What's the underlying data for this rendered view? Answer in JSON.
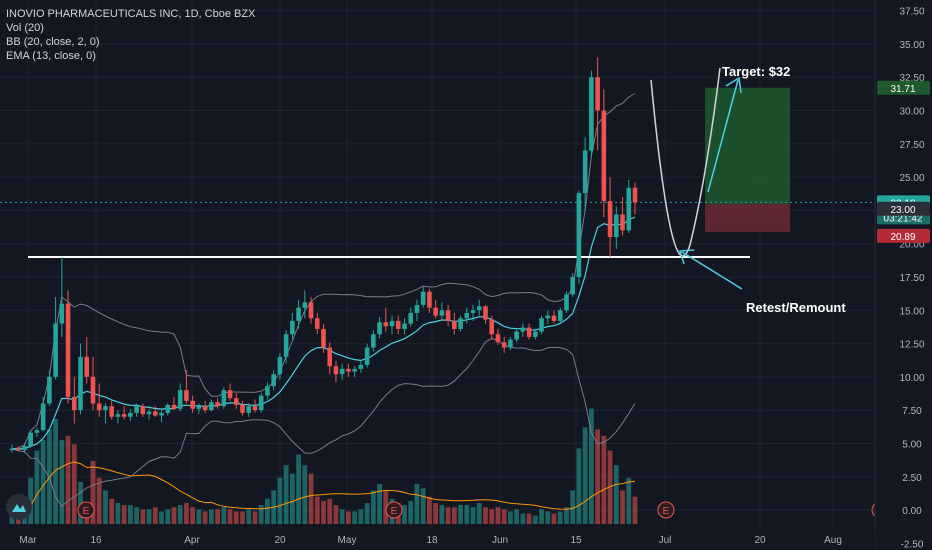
{
  "legend": {
    "title": "INOVIO PHARMACEUTICALS INC, 1D, Cboe BZX",
    "vol": "Vol (20)",
    "bb": "BB (20, close, 2, 0)",
    "ema": "EMA (13, close, 0)"
  },
  "annotations": {
    "target": "Target: $32",
    "retest": "Retest/Remount"
  },
  "price_badges": {
    "target": "31.71",
    "last": "23.10",
    "countdown": "03:21:42",
    "entry": "23.00",
    "stop": "20.89"
  },
  "earnings_marker": "E",
  "colors": {
    "background": "#131722",
    "up": "#26a69a",
    "down": "#ef5350",
    "bb": "#787b86",
    "ema": "#4dd0e1",
    "vol_ma": "#ff9800",
    "target_zone": "#1e5a2e",
    "stop_zone": "#6b2a35",
    "annotation": "#4dd0e1"
  },
  "chart_data": {
    "type": "candlestick",
    "title": "INOVIO PHARMACEUTICALS INC, 1D, Cboe BZX",
    "ylim": [
      -3.0,
      38.3
    ],
    "y_ticks": [
      "37.50",
      "35.00",
      "32.50",
      "30.00",
      "27.50",
      "25.00",
      "22.50",
      "20.00",
      "17.50",
      "15.00",
      "12.50",
      "10.00",
      "7.50",
      "5.00",
      "2.50",
      "0.00",
      "-2.50"
    ],
    "x_ticks": [
      "Mar",
      "16",
      "Apr",
      "20",
      "May",
      "18",
      "Jun",
      "15",
      "Jul",
      "20",
      "Aug"
    ],
    "resistance_level": 19.0,
    "target_price": 31.71,
    "entry_price": 23.0,
    "stop_price": 20.89,
    "last_price": 23.1,
    "candles": [
      [
        4.5,
        4.9,
        4.3,
        4.6,
        0.45
      ],
      [
        4.6,
        4.8,
        4.4,
        4.5,
        0.35
      ],
      [
        4.5,
        5.0,
        4.3,
        4.8,
        0.5
      ],
      [
        4.8,
        6.0,
        4.7,
        5.8,
        2.2
      ],
      [
        5.8,
        6.2,
        5.5,
        6.0,
        3.5
      ],
      [
        6.0,
        8.5,
        5.9,
        8.0,
        4.0
      ],
      [
        8.0,
        10.5,
        7.8,
        10.0,
        4.5
      ],
      [
        10.0,
        16.0,
        9.8,
        14.0,
        5.0
      ],
      [
        14.0,
        19.0,
        13.0,
        15.5,
        4.0
      ],
      [
        15.5,
        16.5,
        8.0,
        8.5,
        4.2
      ],
      [
        8.5,
        10.0,
        6.5,
        7.5,
        3.8
      ],
      [
        7.5,
        12.5,
        7.2,
        11.5,
        2.0
      ],
      [
        11.5,
        13.0,
        9.5,
        10.0,
        0.5
      ],
      [
        10.0,
        11.5,
        7.5,
        8.0,
        3.0
      ],
      [
        8.0,
        9.5,
        7.0,
        7.5,
        2.2
      ],
      [
        7.5,
        8.0,
        6.5,
        7.8,
        1.6
      ],
      [
        7.8,
        8.2,
        6.8,
        7.0,
        1.2
      ],
      [
        7.0,
        7.5,
        6.5,
        7.2,
        1.0
      ],
      [
        7.2,
        7.8,
        6.8,
        7.0,
        0.9
      ],
      [
        7.0,
        7.6,
        6.7,
        7.3,
        0.9
      ],
      [
        7.3,
        8.0,
        7.0,
        7.8,
        0.8
      ],
      [
        7.8,
        8.0,
        7.0,
        7.2,
        0.7
      ],
      [
        7.2,
        7.6,
        6.8,
        7.4,
        0.7
      ],
      [
        7.4,
        7.8,
        7.0,
        7.1,
        0.8
      ],
      [
        7.1,
        7.5,
        6.6,
        7.3,
        0.6
      ],
      [
        7.3,
        8.0,
        7.1,
        7.9,
        0.7
      ],
      [
        7.9,
        8.5,
        7.5,
        7.6,
        0.8
      ],
      [
        7.6,
        9.5,
        7.4,
        9.0,
        0.9
      ],
      [
        9.0,
        10.5,
        8.0,
        8.2,
        1.0
      ],
      [
        8.2,
        8.6,
        7.3,
        7.6,
        0.8
      ],
      [
        7.6,
        8.0,
        7.2,
        7.8,
        0.7
      ],
      [
        7.8,
        8.2,
        7.3,
        7.5,
        0.6
      ],
      [
        7.5,
        8.3,
        7.4,
        8.1,
        0.7
      ],
      [
        8.1,
        8.4,
        7.6,
        7.8,
        0.7
      ],
      [
        7.8,
        9.2,
        7.6,
        9.0,
        0.8
      ],
      [
        9.0,
        9.5,
        8.2,
        8.4,
        0.7
      ],
      [
        8.4,
        8.8,
        7.6,
        7.9,
        0.6
      ],
      [
        7.9,
        8.2,
        7.1,
        7.3,
        0.6
      ],
      [
        7.3,
        8.0,
        7.0,
        7.8,
        0.7
      ],
      [
        7.8,
        8.3,
        7.3,
        7.5,
        0.6
      ],
      [
        7.5,
        8.8,
        7.3,
        8.6,
        0.9
      ],
      [
        8.6,
        9.6,
        8.3,
        9.3,
        1.2
      ],
      [
        9.3,
        10.5,
        9.0,
        10.2,
        1.6
      ],
      [
        10.2,
        11.8,
        9.8,
        11.5,
        2.2
      ],
      [
        11.5,
        13.5,
        11.0,
        13.2,
        2.8
      ],
      [
        13.2,
        14.8,
        12.8,
        14.2,
        2.4
      ],
      [
        14.2,
        15.8,
        13.6,
        15.2,
        3.3
      ],
      [
        15.2,
        16.5,
        14.4,
        15.6,
        2.8
      ],
      [
        15.6,
        16.0,
        14.0,
        14.4,
        2.4
      ],
      [
        14.4,
        14.8,
        13.2,
        13.6,
        1.3
      ],
      [
        13.6,
        14.0,
        11.8,
        12.2,
        1.1
      ],
      [
        12.2,
        12.6,
        10.2,
        10.8,
        1.2
      ],
      [
        10.8,
        11.2,
        9.6,
        10.2,
        0.9
      ],
      [
        10.2,
        11.0,
        9.8,
        10.6,
        0.7
      ],
      [
        10.6,
        11.0,
        10.0,
        10.4,
        0.6
      ],
      [
        10.4,
        10.8,
        10.0,
        10.6,
        0.6
      ],
      [
        10.6,
        11.2,
        10.3,
        10.9,
        0.7
      ],
      [
        10.9,
        12.5,
        10.7,
        12.2,
        1.0
      ],
      [
        12.2,
        13.5,
        11.9,
        13.2,
        1.6
      ],
      [
        13.2,
        14.5,
        12.9,
        14.1,
        1.9
      ],
      [
        14.1,
        15.2,
        13.4,
        13.8,
        1.6
      ],
      [
        13.8,
        14.6,
        13.2,
        14.2,
        1.2
      ],
      [
        14.2,
        14.6,
        13.2,
        13.6,
        1.0
      ],
      [
        13.6,
        14.4,
        13.2,
        14.0,
        0.9
      ],
      [
        14.0,
        15.2,
        13.8,
        14.8,
        1.1
      ],
      [
        14.8,
        15.8,
        14.2,
        15.4,
        1.9
      ],
      [
        15.4,
        16.8,
        15.2,
        16.4,
        1.7
      ],
      [
        16.4,
        16.6,
        14.8,
        15.2,
        1.3
      ],
      [
        15.2,
        15.8,
        14.4,
        14.6,
        1.0
      ],
      [
        14.6,
        15.6,
        14.2,
        15.0,
        0.9
      ],
      [
        15.0,
        15.4,
        13.8,
        14.2,
        0.8
      ],
      [
        14.2,
        14.8,
        13.2,
        13.6,
        0.8
      ],
      [
        13.6,
        14.6,
        13.4,
        14.4,
        0.9
      ],
      [
        14.4,
        15.2,
        14.0,
        14.8,
        0.9
      ],
      [
        14.8,
        15.4,
        14.2,
        15.0,
        0.8
      ],
      [
        15.0,
        15.8,
        14.6,
        15.3,
        1.0
      ],
      [
        15.3,
        15.4,
        14.0,
        14.3,
        0.8
      ],
      [
        14.3,
        14.6,
        12.8,
        13.2,
        0.7
      ],
      [
        13.2,
        13.6,
        12.4,
        12.6,
        0.8
      ],
      [
        12.6,
        13.0,
        11.8,
        12.2,
        0.7
      ],
      [
        12.2,
        13.0,
        12.0,
        12.8,
        0.6
      ],
      [
        12.8,
        13.6,
        12.6,
        13.4,
        0.7
      ],
      [
        13.4,
        14.0,
        13.0,
        13.7,
        0.5
      ],
      [
        13.7,
        14.0,
        12.8,
        13.0,
        0.5
      ],
      [
        13.0,
        13.6,
        12.8,
        13.4,
        0.4
      ],
      [
        13.4,
        14.6,
        13.2,
        14.4,
        0.7
      ],
      [
        14.4,
        15.0,
        14.0,
        14.6,
        0.6
      ],
      [
        14.6,
        15.0,
        14.0,
        14.2,
        0.5
      ],
      [
        14.2,
        15.2,
        14.0,
        15.0,
        0.6
      ],
      [
        15.0,
        16.4,
        14.8,
        16.2,
        0.8
      ],
      [
        16.2,
        17.8,
        16.0,
        17.5,
        1.6
      ],
      [
        17.5,
        24.0,
        17.0,
        23.8,
        3.6
      ],
      [
        23.8,
        28.0,
        22.5,
        27.0,
        4.6
      ],
      [
        27.0,
        33.0,
        26.5,
        32.5,
        5.5
      ],
      [
        32.5,
        34.0,
        27.0,
        30.0,
        4.5
      ],
      [
        30.0,
        31.6,
        22.0,
        23.2,
        4.2
      ],
      [
        23.2,
        25.0,
        19.0,
        20.5,
        3.5
      ],
      [
        20.5,
        22.8,
        19.6,
        22.2,
        2.8
      ],
      [
        22.2,
        23.5,
        20.6,
        21.0,
        1.6
      ],
      [
        21.0,
        24.8,
        20.8,
        24.2,
        2.2
      ],
      [
        24.2,
        24.6,
        22.2,
        23.1,
        1.3
      ]
    ]
  }
}
